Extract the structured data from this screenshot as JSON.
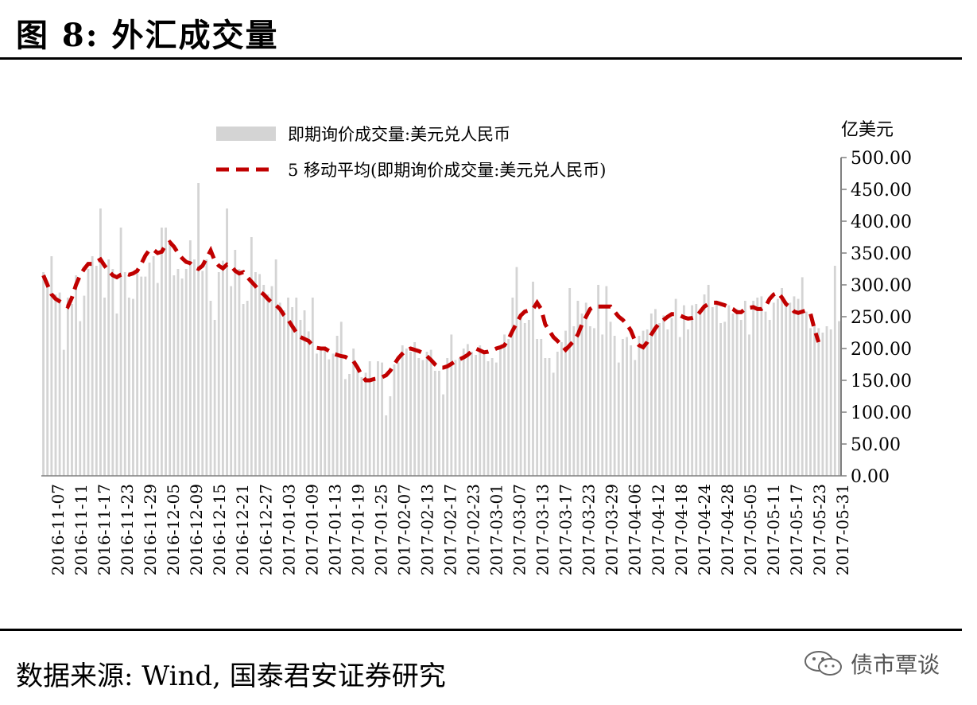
{
  "header": {
    "title": "图 8: 外汇成交量"
  },
  "footer": {
    "source": "数据来源: Wind, 国泰君安证券研究",
    "watermark": "债市覃谈"
  },
  "colors": {
    "bar": "#d4d4d4",
    "line": "#c00000",
    "axis": "#7f7f7f",
    "rule": "#000000"
  },
  "icons": {
    "watermark": "wechat-logo-icon"
  },
  "chart_data": {
    "type": "bar",
    "unit_label": "亿美元",
    "ylim": [
      0,
      500
    ],
    "yticks": [
      "0.00",
      "50.00",
      "100.00",
      "150.00",
      "200.00",
      "250.00",
      "300.00",
      "350.00",
      "400.00",
      "450.00",
      "500.00"
    ],
    "x_tick_labels": [
      "2016-11-07",
      "2016-11-11",
      "2016-11-17",
      "2016-11-23",
      "2016-11-29",
      "2016-12-05",
      "2016-12-09",
      "2016-12-15",
      "2016-12-21",
      "2016-12-27",
      "2017-01-03",
      "2017-01-09",
      "2017-01-13",
      "2017-01-19",
      "2017-01-25",
      "2017-02-07",
      "2017-02-13",
      "2017-02-17",
      "2017-02-23",
      "2017-03-01",
      "2017-03-07",
      "2017-03-13",
      "2017-03-17",
      "2017-03-23",
      "2017-03-29",
      "2017-04-06",
      "2017-04-12",
      "2017-04-18",
      "2017-04-24",
      "2017-04-28",
      "2017-05-05",
      "2017-05-11",
      "2017-05-17",
      "2017-05-23",
      "2017-05-31"
    ],
    "legend_position": "top-left",
    "grid": false,
    "series": [
      {
        "name": "即期询价成交量:美元兑人民币",
        "type": "bar",
        "values": [
          320,
          300,
          345,
          285,
          288,
          198,
          280,
          270,
          315,
          243,
          283,
          325,
          345,
          330,
          420,
          280,
          340,
          325,
          255,
          390,
          320,
          280,
          278,
          318,
          313,
          313,
          335,
          345,
          303,
          390,
          390,
          370,
          315,
          325,
          310,
          325,
          370,
          340,
          460,
          322,
          340,
          275,
          245,
          320,
          338,
          420,
          298,
          355,
          325,
          270,
          275,
          375,
          320,
          317,
          300,
          285,
          298,
          340,
          272,
          260,
          280,
          265,
          280,
          245,
          260,
          227,
          280,
          192,
          200,
          203,
          183,
          192,
          220,
          242,
          152,
          160,
          200,
          172,
          155,
          162,
          180,
          152,
          180,
          178,
          95,
          125,
          175,
          178,
          205,
          200,
          195,
          210,
          185,
          182,
          195,
          198,
          165,
          165,
          128,
          185,
          222,
          182,
          185,
          200,
          207,
          195,
          190,
          205,
          192,
          180,
          185,
          178,
          200,
          222,
          215,
          280,
          328,
          250,
          240,
          245,
          305,
          215,
          215,
          185,
          185,
          162,
          195,
          210,
          228,
          295,
          235,
          275,
          255,
          272,
          235,
          232,
          300,
          222,
          298,
          242,
          220,
          178,
          215,
          218,
          205,
          182,
          220,
          228,
          230,
          255,
          262,
          240,
          252,
          230,
          248,
          278,
          218,
          268,
          230,
          268,
          270,
          255,
          285,
          300,
          265,
          272,
          240,
          242,
          268,
          255,
          262,
          245,
          275,
          222,
          275,
          280,
          282,
          258,
          245,
          272,
          278,
          295,
          268,
          272,
          282,
          278,
          312,
          258,
          232,
          235,
          232,
          225,
          235,
          230,
          330,
          243
        ]
      },
      {
        "name": "5 移动平均(即期询价成交量:美元兑人民币)",
        "type": "line",
        "values": [
          315,
          300,
          285,
          278,
          274,
          270,
          266,
          280,
          300,
          315,
          325,
          333,
          333,
          336,
          340,
          330,
          322,
          315,
          312,
          316,
          318,
          316,
          318,
          322,
          333,
          346,
          355,
          355,
          350,
          352,
          363,
          367,
          360,
          350,
          342,
          336,
          334,
          328,
          325,
          330,
          342,
          354,
          338,
          330,
          326,
          332,
          330,
          322,
          318,
          320,
          312,
          305,
          298,
          290,
          285,
          278,
          272,
          268,
          262,
          252,
          245,
          235,
          225,
          218,
          215,
          212,
          205,
          201,
          200,
          200,
          196,
          192,
          190,
          188,
          187,
          183,
          180,
          170,
          158,
          150,
          150,
          152,
          153,
          155,
          158,
          165,
          175,
          185,
          192,
          198,
          200,
          198,
          196,
          193,
          188,
          182,
          175,
          170,
          170,
          172,
          176,
          180,
          183,
          186,
          190,
          196,
          200,
          197,
          194,
          195,
          197,
          200,
          202,
          205,
          215,
          228,
          240,
          252,
          258,
          260,
          262,
          272,
          262,
          238,
          228,
          218,
          212,
          205,
          198,
          205,
          212,
          222,
          238,
          250,
          262,
          266,
          266,
          266,
          266,
          266,
          258,
          250,
          245,
          238,
          228,
          212,
          205,
          202,
          210,
          222,
          232,
          240,
          245,
          250,
          254,
          254,
          252,
          249,
          247,
          248,
          250,
          258,
          266,
          270,
          272,
          272,
          270,
          268,
          265,
          262,
          257,
          257,
          262,
          264,
          265,
          262,
          262,
          266,
          278,
          285,
          288,
          280,
          270,
          265,
          258,
          256,
          258,
          260,
          255,
          230,
          210
        ]
      }
    ]
  }
}
